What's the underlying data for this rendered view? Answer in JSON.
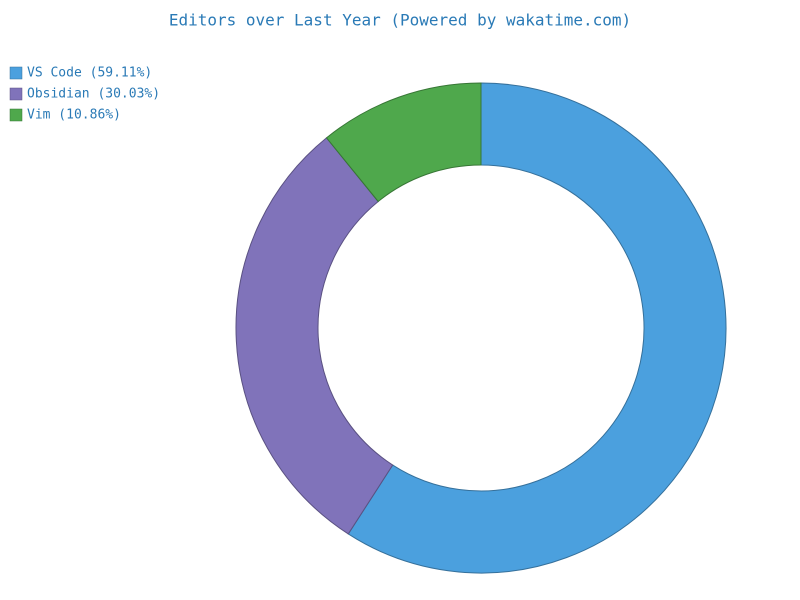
{
  "chart_data": {
    "type": "donut",
    "title": "Editors over Last Year (Powered by wakatime.com)",
    "categories": [
      "VS Code (59.11%)",
      "Obsidian (30.03%)",
      "Vim (10.86%)"
    ],
    "values": [
      59.11,
      30.03,
      10.86
    ],
    "colors": [
      "#4ba0de",
      "#8073ba",
      "#4fa84c"
    ],
    "legend": "upper-left"
  }
}
